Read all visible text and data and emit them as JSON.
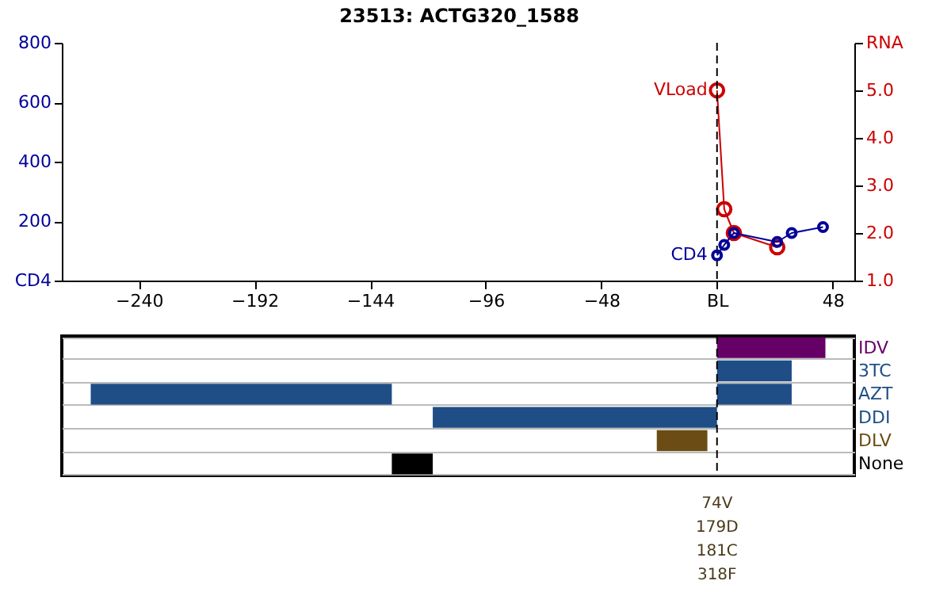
{
  "chart_data": [
    {
      "type": "line",
      "title": "23513: ACTG320_1588",
      "xlim": [
        -272,
        57
      ],
      "xticks": [
        -240,
        -192,
        -144,
        -96,
        -48,
        {
          "value": 0,
          "label": "BL"
        },
        48
      ],
      "ylim": [
        0,
        800
      ],
      "yticks": [
        {
          "value": 0,
          "label": "CD4"
        },
        200,
        400,
        600,
        800
      ],
      "y2lim": [
        1,
        6
      ],
      "y2ticks": [
        {
          "value": 1,
          "label": "1.0"
        },
        {
          "value": 2,
          "label": "2.0"
        },
        {
          "value": 3,
          "label": "3.0"
        },
        {
          "value": 4,
          "label": "4.0"
        },
        {
          "value": 5,
          "label": "5.0"
        },
        {
          "value": 6,
          "label": "RNA"
        }
      ],
      "marker": "circle",
      "grid": false,
      "ref_lines": [
        {
          "axis": "x",
          "value": 0,
          "line_style": "dashed"
        }
      ],
      "series": [
        {
          "name": "VLoad",
          "color": "#cc0000",
          "axis": "y2",
          "x": [
            0,
            3,
            7,
            25
          ],
          "values": [
            5.0,
            2.5,
            2.0,
            1.7
          ]
        },
        {
          "name": "CD4",
          "color": "#000099",
          "x": [
            0,
            3,
            7,
            25,
            31,
            44
          ],
          "values": [
            85,
            120,
            160,
            130,
            160,
            180
          ]
        }
      ]
    },
    {
      "type": "bar",
      "orientation": "horizontal",
      "categories": [
        "IDV",
        "3TC",
        "AZT",
        "DDI",
        "DLV",
        "None"
      ],
      "xlim": [
        -272,
        57
      ],
      "tick_labels": "y",
      "grid": true,
      "ref_lines": [
        {
          "axis": "x",
          "value": 0,
          "line_style": "dashed"
        }
      ],
      "series": [
        {
          "colors": [
            "#660066",
            "#1f4e86",
            "#1f4e86",
            "#1f4e86",
            "#6b4c14",
            "#000000"
          ],
          "base": [
            0,
            0,
            0,
            -118,
            -25,
            -135
          ],
          "values": [
            45,
            31,
            31,
            118,
            21,
            17
          ]
        },
        {
          "color": "#1f4e86",
          "base": [
            null,
            null,
            -260,
            null,
            null,
            null
          ],
          "values": [
            null,
            null,
            125,
            null,
            null,
            null
          ]
        }
      ],
      "annotations": [
        "74V",
        "179D",
        "181C",
        "318F"
      ]
    }
  ]
}
